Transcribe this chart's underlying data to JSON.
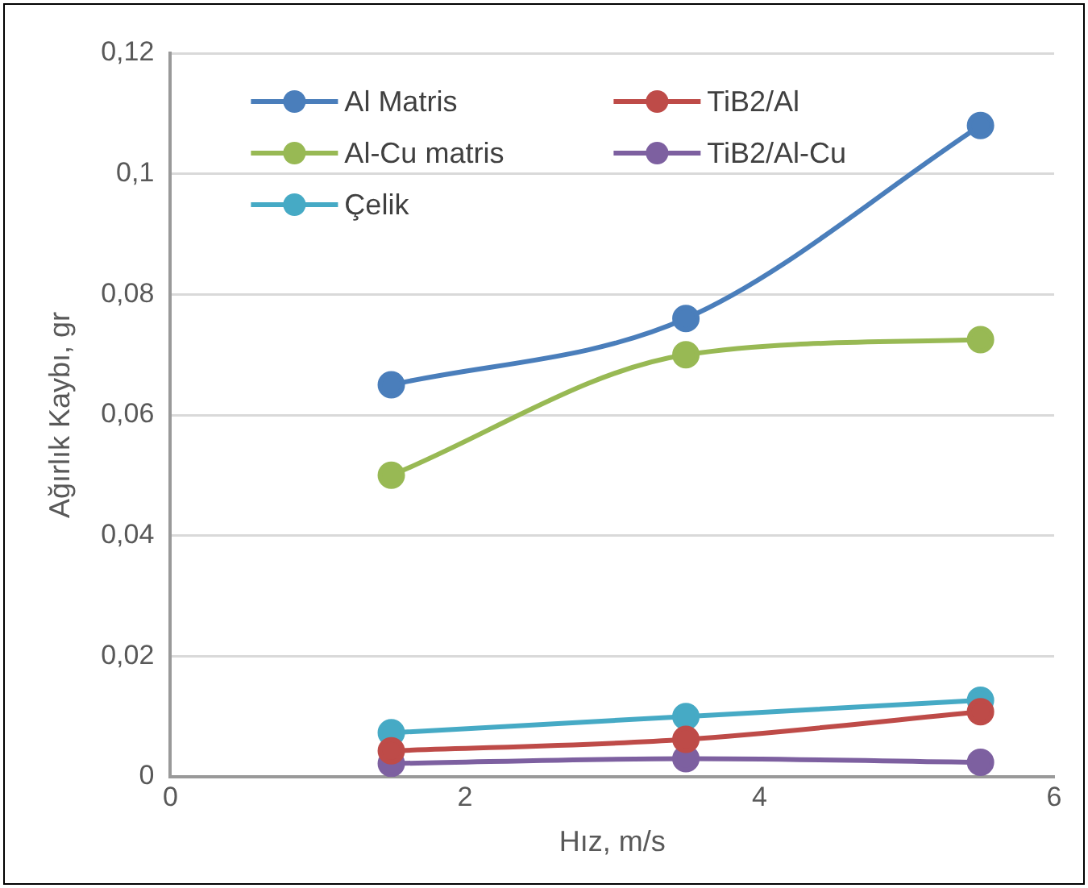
{
  "chart_data": {
    "type": "line",
    "xlabel": "Hız, m/s",
    "ylabel": "Ağırlık Kaybı, gr",
    "x": [
      1.5,
      3.5,
      5.5
    ],
    "series": [
      {
        "name": "Al Matris",
        "color": "#4a7ebb",
        "values": [
          0.065,
          0.076,
          0.108
        ]
      },
      {
        "name": "TiB2/Al",
        "color": "#be4b48",
        "values": [
          0.0043,
          0.0062,
          0.0108
        ]
      },
      {
        "name": "Al-Cu matris",
        "color": "#98b954",
        "values": [
          0.05,
          0.07,
          0.0725
        ]
      },
      {
        "name": "TiB2/Al-Cu",
        "color": "#7d60a0",
        "values": [
          0.0022,
          0.003,
          0.0024
        ]
      },
      {
        "name": "Çelik",
        "color": "#46aac5",
        "values": [
          0.0073,
          0.01,
          0.0127
        ]
      }
    ],
    "xlim": [
      0,
      6
    ],
    "xticks": [
      0,
      2,
      4,
      6
    ],
    "ylim": [
      0,
      0.12
    ],
    "yticks": [
      {
        "value": 0,
        "label": "0"
      },
      {
        "value": 0.02,
        "label": "0,02"
      },
      {
        "value": 0.04,
        "label": "0,04"
      },
      {
        "value": 0.06,
        "label": "0,06"
      },
      {
        "value": 0.08,
        "label": "0,08"
      },
      {
        "value": 0.1,
        "label": "0,1"
      },
      {
        "value": 0.12,
        "label": "0,12"
      }
    ],
    "grid": "y",
    "legend": "top left",
    "marker": "circle",
    "line_style": "solid"
  }
}
